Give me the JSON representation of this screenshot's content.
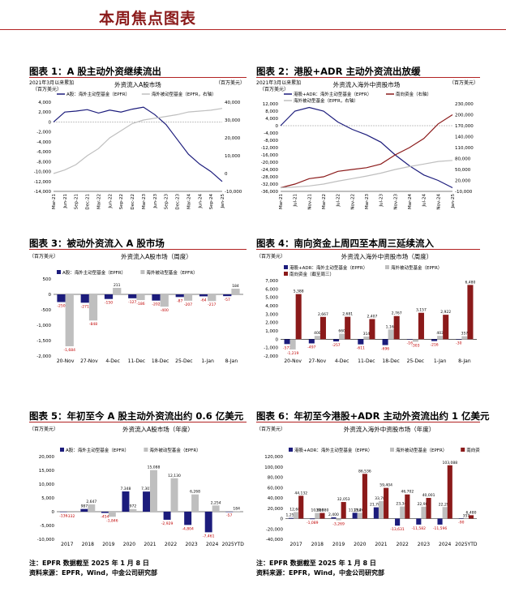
{
  "page_title": "本周焦点图表",
  "footnote": "注：EPFR 数据截至 2025 年 1 月 8 日",
  "source_left": "资料来源：EPFR，Wind，中金公司研究部",
  "source_right": "资料来源：EPFR，Wind，中金公司研究部",
  "colors": {
    "navy": "#1c1c7c",
    "gray": "#bfbfbf",
    "darkred": "#8b1a1a",
    "accent": "#b22222"
  },
  "charts": [
    {
      "title": "图表 1：A 股主动外资继续流出",
      "chart_data": {
        "type": "line",
        "title": "外资流入A股市场",
        "subtitle": "2021年3月以来累加",
        "ylabel": "（百万美元）",
        "y2label": "（百万美元）",
        "ylim": [
          -14000,
          4000
        ],
        "yticks": [
          4000,
          2000,
          0,
          -2000,
          -4000,
          -6000,
          -8000,
          -10000,
          -12000,
          -14000
        ],
        "y2lim": [
          -10000,
          40000
        ],
        "y2ticks": [
          40000,
          30000,
          20000,
          10000,
          0,
          -10000
        ],
        "x": [
          "Mar-21",
          "Jun-21",
          "Sep-21",
          "Dec-21",
          "Mar-22",
          "Jun-22",
          "Sep-22",
          "Dec-22",
          "Mar-23",
          "Jun-23",
          "Sep-23",
          "Dec-23",
          "Mar-24",
          "Jun-24",
          "Sep-24",
          "Jan-25"
        ],
        "series": [
          {
            "name": "A股：海外主动型基金（EPFR）",
            "axis": "left",
            "color": "#1c1c7c",
            "values": [
              0,
              2000,
              2200,
              2500,
              1800,
              2400,
              2000,
              2600,
              3000,
              1500,
              -500,
              -3500,
              -6500,
              -8500,
              -10000,
              -12000
            ]
          },
          {
            "name": "海外被动型基金（EPFR，右轴）",
            "axis": "right",
            "color": "#bfbfbf",
            "values": [
              0,
              2000,
              5000,
              10000,
              14000,
              20000,
              24000,
              28000,
              30000,
              31000,
              32000,
              33000,
              34500,
              35000,
              35500,
              36500
            ]
          }
        ]
      }
    },
    {
      "title": "图表 2：港股+ADR 主动外资流出放缓",
      "chart_data": {
        "type": "line",
        "title": "外资流入海外中资股市场",
        "subtitle": "2021年3月以来累加",
        "ylabel": "（百万美元）",
        "y2label": "（百万美元）",
        "ylim": [
          -36000,
          12000
        ],
        "yticks": [
          12000,
          8000,
          4000,
          0,
          -4000,
          -8000,
          -12000,
          -16000,
          -20000,
          -24000,
          -28000,
          -32000,
          -36000
        ],
        "y2lim": [
          -10000,
          230000
        ],
        "y2ticks": [
          230000,
          200000,
          170000,
          140000,
          110000,
          80000,
          50000,
          20000,
          -10000
        ],
        "x": [
          "Mar-21",
          "Jul-21",
          "Nov-21",
          "Mar-22",
          "Jul-22",
          "Nov-22",
          "Mar-23",
          "Jul-23",
          "Nov-23",
          "Mar-24",
          "Jul-24",
          "Nov-24",
          "Jan-25"
        ],
        "series": [
          {
            "name": "港股+ADR：海外主动型基金（EPFR）",
            "axis": "left",
            "color": "#1c1c7c",
            "values": [
              0,
              8000,
              10000,
              8000,
              2000,
              -2000,
              -5000,
              -9000,
              -16000,
              -22000,
              -27000,
              -30000,
              -34000
            ]
          },
          {
            "name": "南向资金（右轴）",
            "axis": "right",
            "color": "#8b1a1a",
            "values": [
              0,
              10000,
              25000,
              30000,
              45000,
              50000,
              55000,
              65000,
              90000,
              110000,
              135000,
              175000,
              200000
            ]
          },
          {
            "name": "海外被动型基金（EPFR，右轴）",
            "axis": "right",
            "color": "#bfbfbf",
            "values": [
              0,
              2000,
              5000,
              10000,
              18000,
              25000,
              32000,
              40000,
              50000,
              58000,
              65000,
              72000,
              75000
            ]
          }
        ]
      }
    },
    {
      "title": "图表 3：被动外资流入 A 股市场",
      "chart_data": {
        "type": "bar",
        "title": "外资流入A股市场（周度）",
        "ylabel": "（百万美元）",
        "ylim": [
          -2000,
          500
        ],
        "yticks": [
          500,
          0,
          -500,
          -1000,
          -1500,
          -2000
        ],
        "categories": [
          "20-Nov",
          "27-Nov",
          "4-Dec",
          "11-Dec",
          "18-Dec",
          "25-Dec",
          "1-Jan",
          "8-Jan"
        ],
        "series": [
          {
            "name": "A股：海外主动型基金（EPFR）",
            "color": "#1c1c7c",
            "values": [
              -250,
              -271,
              -150,
              -127,
              -202,
              -87,
              -64,
              -57
            ],
            "labels": [
              "-250",
              "-271",
              "-150",
              "-127",
              "-202",
              "-87",
              "-64",
              "-57"
            ]
          },
          {
            "name": "海外被动型基金（EPFR）",
            "color": "#bfbfbf",
            "values": [
              -1684,
              -848,
              211,
              -186,
              -400,
              -207,
              -217,
              184
            ],
            "labels": [
              "-1,684",
              "-848",
              "211",
              "-186",
              "-400",
              "-207",
              "-217",
              "184"
            ]
          }
        ]
      }
    },
    {
      "title": "图表 4：南向资金上周四至本周三延续流入",
      "chart_data": {
        "type": "bar",
        "title": "外资流入海外中资股市场（周度）",
        "ylabel": "（百万美元）",
        "ylim": [
          -2000,
          7000
        ],
        "yticks": [
          7000,
          6000,
          5000,
          4000,
          3000,
          2000,
          1000,
          0,
          -1000,
          -2000
        ],
        "categories": [
          "20-Nov",
          "27-Nov",
          "4-Dec",
          "11-Dec",
          "18-Dec",
          "25-Dec",
          "1-Jan",
          "8-Jan"
        ],
        "series": [
          {
            "name": "港股+ADR：海外主动型基金（EPFR）",
            "color": "#1c1c7c",
            "values": [
              -577,
              -497,
              -257,
              -611,
              -696,
              -16,
              -216,
              -30
            ],
            "labels": [
              "-577",
              "-497",
              "-257",
              "-611",
              "-696",
              "-16",
              "-216",
              "-30"
            ]
          },
          {
            "name": "海外被动型基金（EPFR）",
            "color": "#bfbfbf",
            "values": [
              -1219,
              400,
              660,
              314,
              1162,
              -303,
              403,
              357
            ],
            "labels": [
              "-1,219",
              "400",
              "660",
              "314",
              "1,162",
              "-303",
              "403",
              "357"
            ]
          },
          {
            "name": "南向资金（截至周三）",
            "color": "#8b1a1a",
            "values": [
              5388,
              2667,
              2681,
              2407,
              2767,
              3157,
              2922,
              6480
            ],
            "labels": [
              "5,388",
              "2,667",
              "2,681",
              "2,407",
              "2,767",
              "3,157",
              "2,922",
              "6,480"
            ]
          }
        ]
      }
    },
    {
      "title": "图表 5：年初至今 A 股主动外资流出约 0.6 亿美元",
      "chart_data": {
        "type": "bar",
        "title": "外资流入A股市场（年度）",
        "ylabel": "（百万美元）",
        "ylim": [
          -10000,
          20000
        ],
        "yticks": [
          20000,
          15000,
          10000,
          5000,
          0,
          -5000,
          -10000
        ],
        "categories": [
          "2017",
          "2018",
          "2019",
          "2020",
          "2021",
          "2022",
          "2023",
          "2024",
          "2025YTD"
        ],
        "series": [
          {
            "name": "A股：海外主动型基金（EPFR）",
            "color": "#1c1c7c",
            "values": [
              -136,
              987,
              -454,
              7348,
              7301,
              -2929,
              -4804,
              -7461,
              -57
            ],
            "labels": [
              "-136",
              "987",
              "-454",
              "7,348",
              "7,301",
              "-2,929",
              "-4,804",
              "-7,461",
              "-57"
            ]
          },
          {
            "name": "海外被动型基金（EPFR）",
            "color": "#bfbfbf",
            "values": [
              -332,
              2647,
              -1846,
              972,
              15088,
              12130,
              6268,
              2254,
              184
            ],
            "labels": [
              "-332",
              "2,647",
              "-1,846",
              "972",
              "15,088",
              "12,130",
              "6,268",
              "2,254",
              "184"
            ]
          }
        ]
      }
    },
    {
      "title": "图表 6：年初至今港股+ADR 主动外资流出约 1 亿美元",
      "chart_data": {
        "type": "bar",
        "title": "外资流入海外中资股市场（年度）",
        "ylabel": "（百万美元）",
        "ylim": [
          -40000,
          120000
        ],
        "yticks": [
          120000,
          100000,
          80000,
          60000,
          40000,
          20000,
          0,
          -20000,
          -40000
        ],
        "categories": [
          "2017",
          "2018",
          "2019",
          "2020",
          "2021",
          "2022",
          "2023",
          "2024",
          "2025YTD"
        ],
        "series": [
          {
            "name": "港股+ADR：海外主动型基金（EPFR）",
            "color": "#1c1c7c",
            "values": [
              1253,
              -1089,
              2400,
              11264,
              21780,
              -13631,
              -11582,
              -11596,
              -90
            ],
            "labels": [
              "1,253",
              "-1,089",
              "2,400",
              "11,264",
              "21,780",
              "-13,631",
              "-11,582",
              "-11,596",
              "-90"
            ]
          },
          {
            "name": "海外被动型基金（EPFR）",
            "color": "#bfbfbf",
            "values": [
              12683,
              10880,
              -3269,
              11264,
              33784,
              23340,
              22980,
              22298,
              357
            ],
            "labels": [
              "12,683",
              "10,880",
              "-3,269",
              "11,264",
              "33,784",
              "23,340",
              "22,980",
              "22,298",
              "357"
            ]
          },
          {
            "name": "南向资金",
            "color": "#8b1a1a",
            "values": [
              44132,
              10880,
              32053,
              86536,
              59404,
              46702,
              40001,
              103088,
              6480
            ],
            "labels": [
              "44,132",
              "10,880",
              "32,053",
              "86,536",
              "59,404",
              "46,702",
              "40,001",
              "103,088",
              "6,480"
            ]
          }
        ]
      }
    }
  ]
}
